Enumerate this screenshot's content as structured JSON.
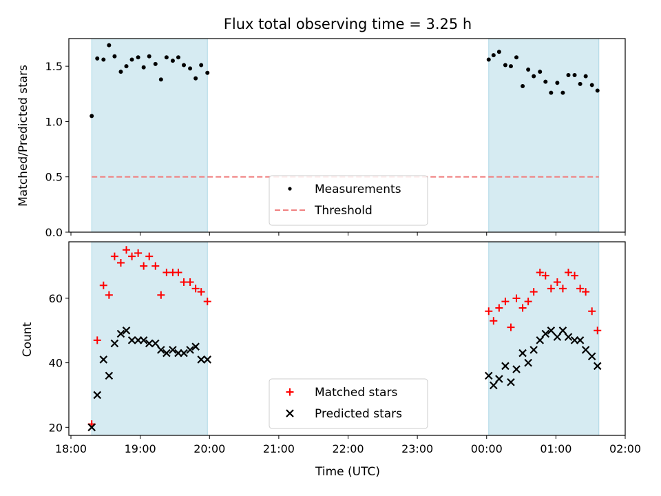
{
  "chart_data": [
    {
      "type": "scatter",
      "title": "Flux total observing time = 3.25 h",
      "ylabel": "Matched/Predicted stars",
      "xlabel": "",
      "x_unit": "hours since 18:00 UTC",
      "xlim": [
        -0.03,
        8.0
      ],
      "ylim": [
        0.0,
        1.75
      ],
      "yticks": [
        0.0,
        0.5,
        1.0,
        1.5
      ],
      "ytick_labels": [
        "0.0",
        "0.5",
        "1.0",
        "1.5"
      ],
      "grid": false,
      "legend_position": "lower center",
      "shaded_spans": [
        [
          0.3,
          1.97
        ],
        [
          6.03,
          7.62
        ]
      ],
      "shade_color": "#add8e6",
      "threshold": {
        "name": "Threshold",
        "y": 0.5,
        "color": "#f08080",
        "style": "dashed"
      },
      "series": [
        {
          "name": "Measurements",
          "color": "#000000",
          "marker": "dot",
          "points": [
            [
              0.3,
              1.05
            ],
            [
              0.38,
              1.57
            ],
            [
              0.47,
              1.56
            ],
            [
              0.55,
              1.69
            ],
            [
              0.63,
              1.59
            ],
            [
              0.72,
              1.45
            ],
            [
              0.8,
              1.5
            ],
            [
              0.88,
              1.56
            ],
            [
              0.97,
              1.58
            ],
            [
              1.05,
              1.49
            ],
            [
              1.13,
              1.59
            ],
            [
              1.22,
              1.52
            ],
            [
              1.3,
              1.38
            ],
            [
              1.38,
              1.58
            ],
            [
              1.47,
              1.55
            ],
            [
              1.55,
              1.58
            ],
            [
              1.63,
              1.51
            ],
            [
              1.72,
              1.48
            ],
            [
              1.8,
              1.39
            ],
            [
              1.88,
              1.51
            ],
            [
              1.97,
              1.44
            ],
            [
              6.03,
              1.56
            ],
            [
              6.1,
              1.6
            ],
            [
              6.18,
              1.63
            ],
            [
              6.27,
              1.51
            ],
            [
              6.35,
              1.5
            ],
            [
              6.43,
              1.58
            ],
            [
              6.52,
              1.32
            ],
            [
              6.6,
              1.47
            ],
            [
              6.68,
              1.41
            ],
            [
              6.77,
              1.45
            ],
            [
              6.85,
              1.36
            ],
            [
              6.93,
              1.26
            ],
            [
              7.02,
              1.35
            ],
            [
              7.1,
              1.26
            ],
            [
              7.18,
              1.42
            ],
            [
              7.27,
              1.42
            ],
            [
              7.35,
              1.34
            ],
            [
              7.43,
              1.41
            ],
            [
              7.52,
              1.33
            ],
            [
              7.6,
              1.28
            ]
          ]
        }
      ]
    },
    {
      "type": "scatter",
      "title": "",
      "ylabel": "Count",
      "xlabel": "Time (UTC)",
      "x_unit": "hours since 18:00 UTC",
      "xlim": [
        -0.03,
        8.0
      ],
      "ylim": [
        17.5,
        77.5
      ],
      "xticks": [
        0,
        1,
        2,
        3,
        4,
        5,
        6,
        7,
        8
      ],
      "xtick_labels": [
        "18:00",
        "19:00",
        "20:00",
        "21:00",
        "22:00",
        "23:00",
        "00:00",
        "01:00",
        "02:00"
      ],
      "yticks": [
        20,
        40,
        60
      ],
      "ytick_labels": [
        "20",
        "40",
        "60"
      ],
      "grid": false,
      "legend_position": "lower center",
      "shaded_spans": [
        [
          0.3,
          1.97
        ],
        [
          6.03,
          7.62
        ]
      ],
      "shade_color": "#add8e6",
      "series": [
        {
          "name": "Matched stars",
          "color": "#ff0000",
          "marker": "plus",
          "points": [
            [
              0.3,
              21
            ],
            [
              0.38,
              47
            ],
            [
              0.47,
              64
            ],
            [
              0.55,
              61
            ],
            [
              0.63,
              73
            ],
            [
              0.72,
              71
            ],
            [
              0.8,
              75
            ],
            [
              0.88,
              73
            ],
            [
              0.97,
              74
            ],
            [
              1.05,
              70
            ],
            [
              1.13,
              73
            ],
            [
              1.22,
              70
            ],
            [
              1.3,
              61
            ],
            [
              1.38,
              68
            ],
            [
              1.47,
              68
            ],
            [
              1.55,
              68
            ],
            [
              1.63,
              65
            ],
            [
              1.72,
              65
            ],
            [
              1.8,
              63
            ],
            [
              1.88,
              62
            ],
            [
              1.97,
              59
            ],
            [
              6.03,
              56
            ],
            [
              6.1,
              53
            ],
            [
              6.18,
              57
            ],
            [
              6.27,
              59
            ],
            [
              6.35,
              51
            ],
            [
              6.43,
              60
            ],
            [
              6.52,
              57
            ],
            [
              6.6,
              59
            ],
            [
              6.68,
              62
            ],
            [
              6.77,
              68
            ],
            [
              6.85,
              67
            ],
            [
              6.93,
              63
            ],
            [
              7.02,
              65
            ],
            [
              7.1,
              63
            ],
            [
              7.18,
              68
            ],
            [
              7.27,
              67
            ],
            [
              7.35,
              63
            ],
            [
              7.43,
              62
            ],
            [
              7.52,
              56
            ],
            [
              7.6,
              50
            ]
          ]
        },
        {
          "name": "Predicted stars",
          "color": "#000000",
          "marker": "x",
          "points": [
            [
              0.3,
              20
            ],
            [
              0.38,
              30
            ],
            [
              0.47,
              41
            ],
            [
              0.55,
              36
            ],
            [
              0.63,
              46
            ],
            [
              0.72,
              49
            ],
            [
              0.8,
              50
            ],
            [
              0.88,
              47
            ],
            [
              0.97,
              47
            ],
            [
              1.05,
              47
            ],
            [
              1.13,
              46
            ],
            [
              1.22,
              46
            ],
            [
              1.3,
              44
            ],
            [
              1.38,
              43
            ],
            [
              1.47,
              44
            ],
            [
              1.55,
              43
            ],
            [
              1.63,
              43
            ],
            [
              1.72,
              44
            ],
            [
              1.8,
              45
            ],
            [
              1.88,
              41
            ],
            [
              1.97,
              41
            ],
            [
              6.03,
              36
            ],
            [
              6.1,
              33
            ],
            [
              6.18,
              35
            ],
            [
              6.27,
              39
            ],
            [
              6.35,
              34
            ],
            [
              6.43,
              38
            ],
            [
              6.52,
              43
            ],
            [
              6.6,
              40
            ],
            [
              6.68,
              44
            ],
            [
              6.77,
              47
            ],
            [
              6.85,
              49
            ],
            [
              6.93,
              50
            ],
            [
              7.02,
              48
            ],
            [
              7.1,
              50
            ],
            [
              7.18,
              48
            ],
            [
              7.27,
              47
            ],
            [
              7.35,
              47
            ],
            [
              7.43,
              44
            ],
            [
              7.52,
              42
            ],
            [
              7.6,
              39
            ]
          ]
        }
      ]
    }
  ]
}
